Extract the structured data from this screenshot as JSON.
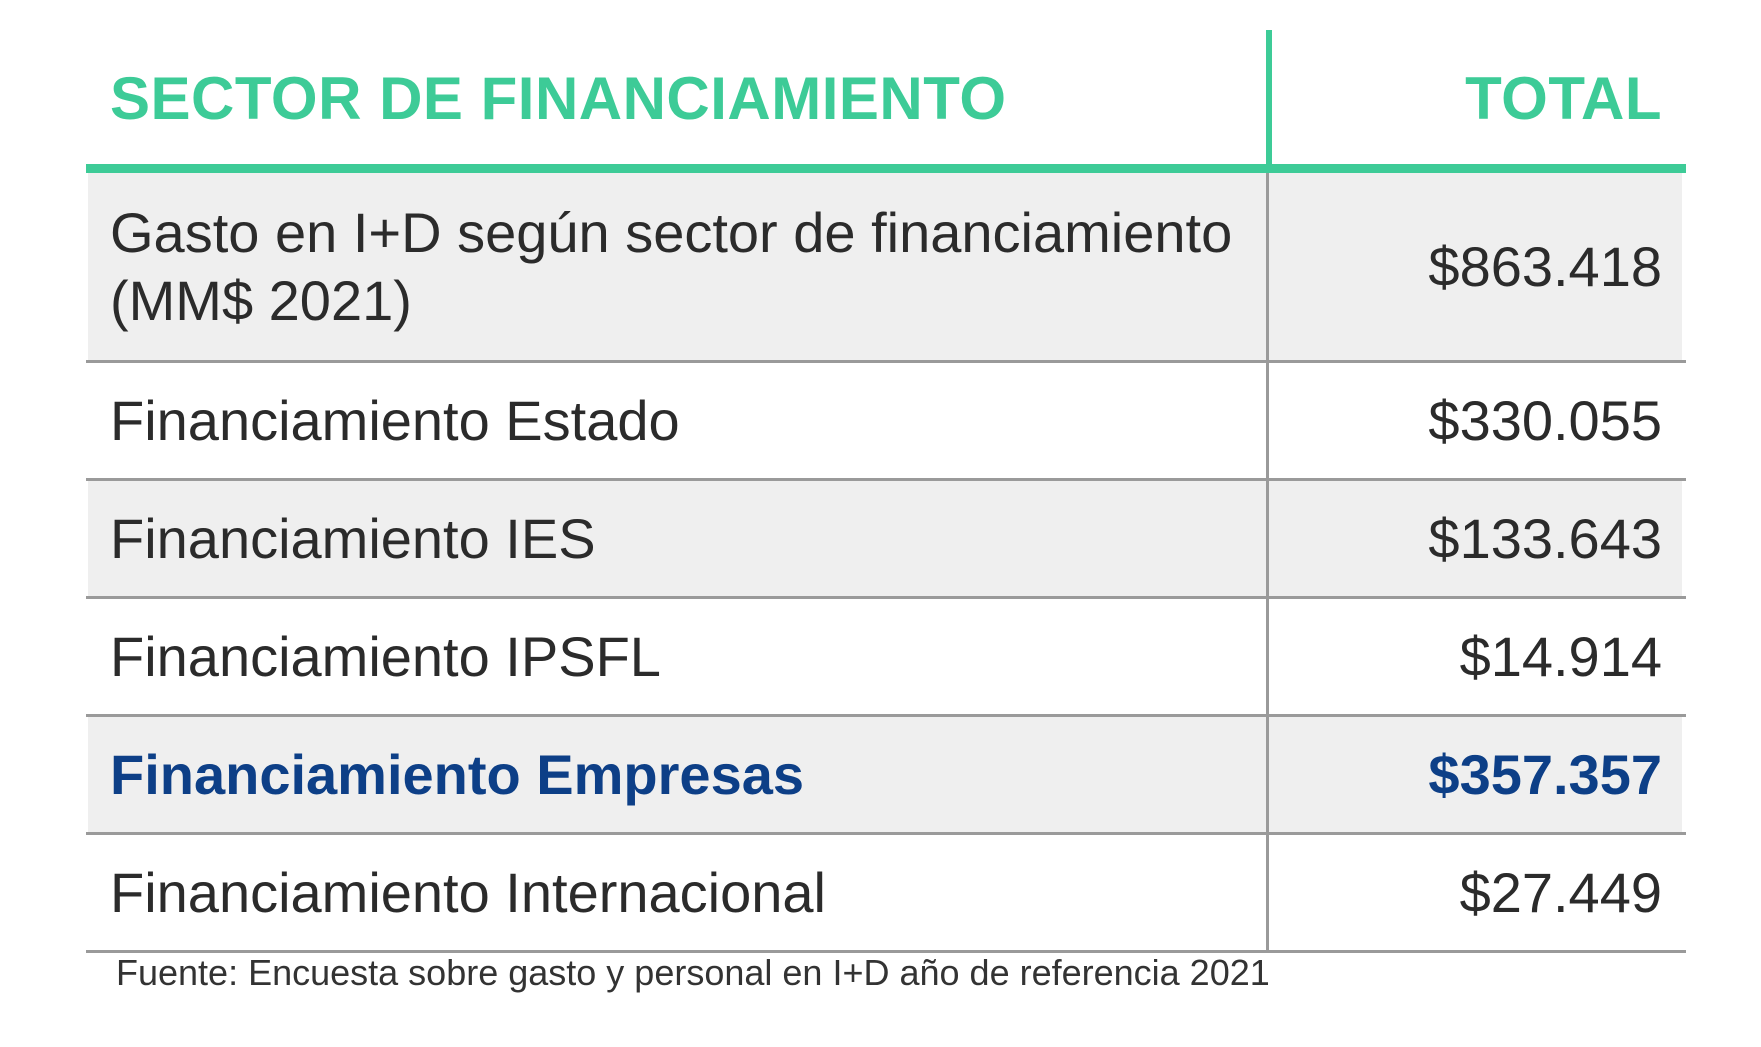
{
  "table": {
    "header": {
      "left": "SECTOR DE FINANCIAMIENTO",
      "right": "TOTAL"
    },
    "rows": [
      {
        "label": "Gasto en I+D según sector de financiamiento (MM$ 2021)",
        "value": "$863.418",
        "shaded": true,
        "highlight": false
      },
      {
        "label": "Financiamiento Estado",
        "value": "$330.055",
        "shaded": false,
        "highlight": false
      },
      {
        "label": "Financiamiento IES",
        "value": "$133.643",
        "shaded": true,
        "highlight": false
      },
      {
        "label": "Financiamiento IPSFL",
        "value": "$14.914",
        "shaded": false,
        "highlight": false
      },
      {
        "label": "Financiamiento Empresas",
        "value": "$357.357",
        "shaded": true,
        "highlight": true
      },
      {
        "label": "Financiamiento Internacional",
        "value": "$27.449",
        "shaded": false,
        "highlight": false
      }
    ]
  },
  "source": "Fuente: Encuesta sobre gasto y personal en I+D año de referencia 2021",
  "colors": {
    "accent": "#3dcb97",
    "highlight": "#0d3f87",
    "shade": "#efefef",
    "rule": "#9a9a9a"
  }
}
